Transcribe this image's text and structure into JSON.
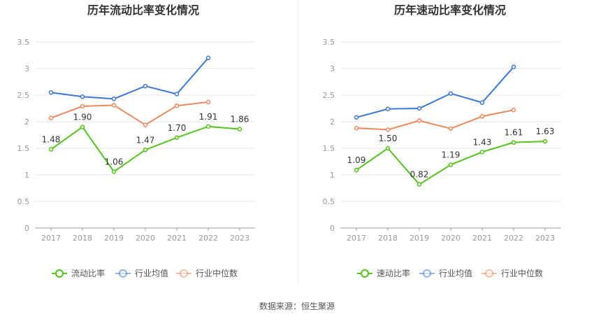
{
  "colors": {
    "main": "#52c41a",
    "avg": "#3c78d8",
    "median": "#f0885c",
    "grid": "#e6e6e6",
    "axis": "#999999",
    "label": "#333333",
    "title": "#333333"
  },
  "source_text": "数据来源：恒生聚源",
  "chart_data": [
    {
      "type": "line",
      "title": "历年流动比率变化情况",
      "categories": [
        "2017",
        "2018",
        "2019",
        "2020",
        "2021",
        "2022",
        "2023"
      ],
      "ylim": [
        0,
        3.5
      ],
      "yticks": [
        "0",
        "0.5",
        "1",
        "1.5",
        "2",
        "2.5",
        "3",
        "3.5"
      ],
      "grid": true,
      "legend": "bottom",
      "series": [
        {
          "name": "流动比率",
          "role": "main",
          "values": [
            1.48,
            1.9,
            1.06,
            1.47,
            1.7,
            1.91,
            1.86
          ],
          "labels": [
            "1.48",
            "1.90",
            "1.06",
            "1.47",
            "1.70",
            "1.91",
            "1.86"
          ]
        },
        {
          "name": "行业均值",
          "role": "avg",
          "values": [
            2.55,
            2.47,
            2.43,
            2.67,
            2.52,
            3.2,
            null
          ]
        },
        {
          "name": "行业中位数",
          "role": "median",
          "values": [
            2.07,
            2.29,
            2.31,
            1.94,
            2.3,
            2.37,
            null
          ]
        }
      ]
    },
    {
      "type": "line",
      "title": "历年速动比率变化情况",
      "categories": [
        "2017",
        "2018",
        "2019",
        "2020",
        "2021",
        "2022",
        "2023"
      ],
      "ylim": [
        0,
        3.5
      ],
      "yticks": [
        "0",
        "0.5",
        "1",
        "1.5",
        "2",
        "2.5",
        "3",
        "3.5"
      ],
      "grid": true,
      "legend": "bottom",
      "series": [
        {
          "name": "速动比率",
          "role": "main",
          "values": [
            1.09,
            1.5,
            0.82,
            1.19,
            1.43,
            1.61,
            1.63
          ],
          "labels": [
            "1.09",
            "1.50",
            "0.82",
            "1.19",
            "1.43",
            "1.61",
            "1.63"
          ]
        },
        {
          "name": "行业均值",
          "role": "avg",
          "values": [
            2.08,
            2.24,
            2.25,
            2.53,
            2.36,
            3.03,
            null
          ]
        },
        {
          "name": "行业中位数",
          "role": "median",
          "values": [
            1.88,
            1.85,
            2.02,
            1.87,
            2.1,
            2.22,
            null
          ]
        }
      ]
    }
  ]
}
